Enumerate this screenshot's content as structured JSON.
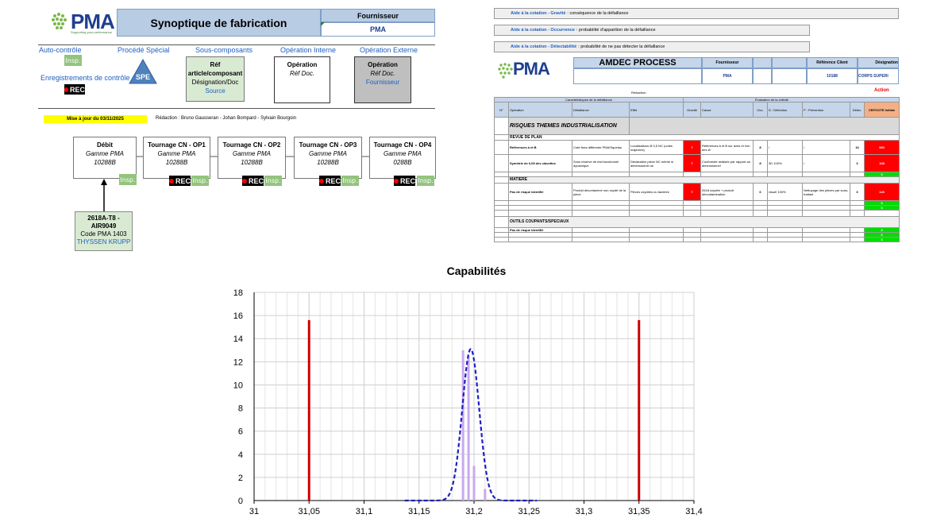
{
  "synoptique": {
    "logo": "PMA",
    "logo_tagline": "Supporting your performance",
    "title": "Synoptique de fabrication",
    "fournisseur_label": "Fournisseur",
    "fournisseur_value": "PMA",
    "legend": {
      "auto_controle": "Auto-contrôle",
      "procede_special": "Procédé Spécial",
      "sous_composants": "Sous-composants",
      "operation_interne": "Opération Interne",
      "operation_externe": "Opération Externe",
      "enregistrements": "Enregistrements de contrôle",
      "insp": "Insp.",
      "spe": "SPE",
      "rec": "REC",
      "ref_box": [
        "Réf",
        "article/composant",
        "Désignation/Doc",
        "Source"
      ],
      "op_int_box": [
        "Opération",
        "Réf Doc."
      ],
      "op_ext_box": [
        "Opération",
        "Réf Doc.",
        "Fournisseur"
      ]
    },
    "updated": "Mise à jour du 03/11/2025",
    "redaction": "Rédaction : Bruno Gausseran - Johan Bompard - Sylvain Bourgoin",
    "flow": [
      {
        "title": "Débit",
        "line2": "Gamme PMA",
        "line3": "10288B"
      },
      {
        "title": "Tournage CN - OP1",
        "line2": "Gamme PMA",
        "line3": "10288B"
      },
      {
        "title": "Tournage CN - OP2",
        "line2": "Gamme PMA",
        "line3": "10288B"
      },
      {
        "title": "Tournage CN - OP3",
        "line2": "Gamme PMA",
        "line3": "10288B"
      },
      {
        "title": "Tournage CN - OP4",
        "line2": "Gamme PMA",
        "line3": "0288B"
      }
    ],
    "supplier": [
      "2618A-T8 -",
      "AIR9049",
      "Code PMA 1403",
      "THYSSEN KRUPP"
    ]
  },
  "amdec": {
    "aide": [
      {
        "label": "Aide à la cotation - Gravité",
        "text": " : conséquence de la défaillance"
      },
      {
        "label": "Aide à la cotation - Occurrence",
        "text": " : probabilité d'apparition de la défaillance"
      },
      {
        "label": "Aide à la cotation - Détectabilité",
        "text": " : probabilité de ne pas détecter la défaillance"
      }
    ],
    "logo": "PMA",
    "title": "AMDEC PROCESS",
    "fournisseur_label": "Fournisseur",
    "fournisseur_value": "PMA",
    "ref_client_label": "Référence Client",
    "ref_client_value": "10188",
    "designation_label": "Désignation",
    "designation_value": "CORPS SUPERI",
    "redaction": "Rédaction :",
    "action": "Action",
    "group_left": "Caractéristiques de la défaillance",
    "group_right": "Évaluation de la criticité",
    "headers": [
      "N°",
      "Opération",
      "Défaillance",
      "Effet",
      "Gravité",
      "Cause",
      "Occ.",
      "D : Détection",
      "P : Prévention",
      "Détec.",
      "CRITICITE Initiale"
    ],
    "section1": "RISQUES THEMES INDUSTRIALISATION",
    "revue": "REVUE DE PLAN",
    "rows1": [
      {
        "op": "Références à et B",
        "def": "Cote fixes différente PMA/Squelas",
        "eff": "Localisations Ø 0,5 NC (cotes majeures)",
        "grav": "7",
        "cause": "Références A et B sur axes et non des Ø",
        "occ": "8",
        "det": "/",
        "prev": "/",
        "detec": "10",
        "crit": "560"
      },
      {
        "op": "Symétrie de 0,05 des clavettes",
        "def": "Sous réserve de test fonctionnel dynamique",
        "eff": "Déclaration pièce NC même si dimensionnel ok",
        "grav": "7",
        "cause": "Conformité réalisée par rapport au dimensionnel",
        "occ": "8",
        "det": "3D 100%",
        "prev": "/",
        "detec": "3",
        "crit": "168"
      }
    ],
    "zero": "0",
    "matiere": "MATIERE",
    "row_matiere": {
      "op": "Pas de risque identifié",
      "def": "Produit décontaminé non oxydé de la pièce",
      "eff": "Pièces oxydées ou tachées",
      "grav": "7",
      "cause": "2618 oxydée + produit décontamination",
      "occ": "6",
      "det": "visuel 100%",
      "prev": "Nettoyage des pièces par sous-traitant",
      "detec": "3",
      "crit": "126"
    },
    "outils": "OUTILS COUPANTS/SPECIAUX",
    "row_outils": "Pas de risque identifié"
  },
  "chart_data": {
    "type": "bar",
    "title": "Capabilités",
    "xlim": [
      31,
      31.4
    ],
    "ylim": [
      0,
      18
    ],
    "x_ticks": [
      "31",
      "31,05",
      "31,1",
      "31,15",
      "31,2",
      "31,25",
      "31,3",
      "31,35",
      "31,4"
    ],
    "y_ticks": [
      "0",
      "2",
      "4",
      "6",
      "8",
      "10",
      "12",
      "14",
      "16",
      "18"
    ],
    "grid": true,
    "histogram": {
      "x": [
        31.19,
        31.195,
        31.2,
        31.21
      ],
      "values": [
        13,
        12.5,
        3,
        1
      ],
      "color": "#c9a9ef"
    },
    "spec_limits": {
      "x": [
        31.05,
        31.35
      ],
      "height": 15.6,
      "color": "#cc0000"
    },
    "fitted_curve": {
      "mean": 31.197,
      "std": 0.0077,
      "peak": 13.1,
      "color": "#1f1fbf",
      "style": "dashed"
    }
  }
}
